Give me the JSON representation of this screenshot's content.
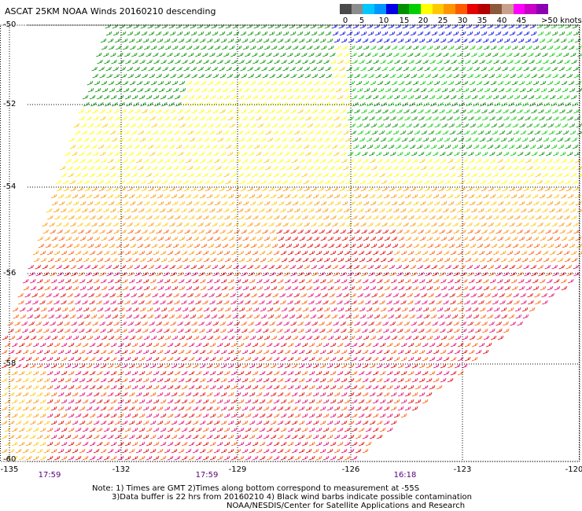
{
  "title": "ASCAT 25KM NOAA Winds 20160210 descending",
  "scale": {
    "ticks": [
      "0",
      "5",
      "10",
      "15",
      "20",
      "25",
      "30",
      "35",
      "40",
      "45"
    ],
    "unit": ">50 knots",
    "colors": [
      "#4a4a4a",
      "#8c8c8c",
      "#00c8ff",
      "#0096ff",
      "#0000e6",
      "#009000",
      "#00d000",
      "#ffff00",
      "#ffc800",
      "#ff9600",
      "#ff5a00",
      "#e60000",
      "#b40000",
      "#8b5a3c",
      "#c8a08c",
      "#ff00ff",
      "#c800c8",
      "#8c00b4"
    ]
  },
  "lat_labels": [
    "-50",
    "-52",
    "-54",
    "-56",
    "-58",
    "-60"
  ],
  "lon_labels": [
    "-135",
    "-132",
    "-129",
    "-126",
    "-123",
    "-120"
  ],
  "time_labels": [
    "17:59",
    "17:59",
    "16:18"
  ],
  "notes": {
    "line1": "Note: 1) Times are GMT 2)Times along bottom correspond to measurement at -55S",
    "line2": "3)Data buffer is 22 hrs from 20160210 4) Black wind barbs indicate possible contamination",
    "line3": "NOAA/NESDIS/Center for Satellite Applications and Research"
  },
  "wind_colors": {
    "10": "#0000e6",
    "15": "#009000",
    "20": "#00d000",
    "25": "#ffff00",
    "28": "#ffc800",
    "30": "#ff9600",
    "33": "#ff5a00",
    "36": "#e60000",
    "40": "#e6006e"
  }
}
